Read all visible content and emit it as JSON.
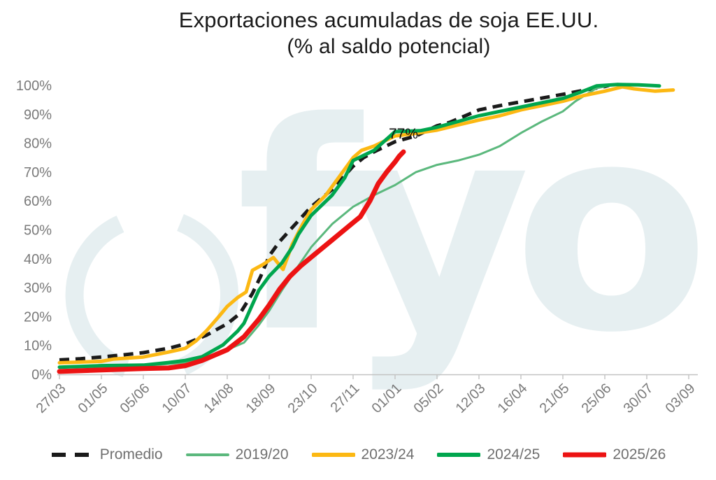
{
  "watermark": {
    "text": "fyo",
    "color": "#e6eff1"
  },
  "chart_data": {
    "type": "line",
    "title": "Exportaciones acumuladas de soja EE.UU.",
    "subtitle": "(% al saldo potencial)",
    "xlabel": "",
    "ylabel": "",
    "ylim": [
      0,
      100
    ],
    "grid": false,
    "legend_position": "bottom",
    "x_unit": "tick_index (0 = 27/03, one tick = 5 weeks)",
    "x_tick_labels": [
      "27/03",
      "01/05",
      "05/06",
      "10/07",
      "14/08",
      "18/09",
      "23/10",
      "27/11",
      "01/01",
      "05/02",
      "12/03",
      "16/04",
      "21/05",
      "25/06",
      "30/07",
      "03/09"
    ],
    "y_ticks": [
      {
        "label": "0%",
        "value": 0
      },
      {
        "label": "10%",
        "value": 10
      },
      {
        "label": "20%",
        "value": 20
      },
      {
        "label": "30%",
        "value": 30
      },
      {
        "label": "40%",
        "value": 40
      },
      {
        "label": "50%",
        "value": 50
      },
      {
        "label": "60%",
        "value": 60
      },
      {
        "label": "70%",
        "value": 70
      },
      {
        "label": "80%",
        "value": 80
      },
      {
        "label": "90%",
        "value": 90
      },
      {
        "label": "100%",
        "value": 100
      }
    ],
    "annotation": {
      "text": "77%",
      "x": 8.2,
      "y": 77
    },
    "axis_color": "#c2c2c2",
    "tick_text_color": "#7a7a7a",
    "series": [
      {
        "name": "Promedio",
        "color": "#1a1a1a",
        "style": "dashed",
        "width": 5,
        "points": [
          [
            0,
            5
          ],
          [
            0.5,
            5.4
          ],
          [
            1,
            6
          ],
          [
            1.5,
            6.7
          ],
          [
            2,
            7.5
          ],
          [
            2.6,
            9
          ],
          [
            3,
            10.5
          ],
          [
            3.5,
            13.5
          ],
          [
            4,
            17.5
          ],
          [
            4.3,
            21
          ],
          [
            4.6,
            28
          ],
          [
            4.8,
            34
          ],
          [
            5,
            41
          ],
          [
            5.25,
            46
          ],
          [
            5.5,
            50
          ],
          [
            5.75,
            54
          ],
          [
            6,
            58
          ],
          [
            6.5,
            64
          ],
          [
            7,
            72
          ],
          [
            7.25,
            75
          ],
          [
            7.5,
            77
          ],
          [
            8,
            80.5
          ],
          [
            8.5,
            82.5
          ],
          [
            9,
            86
          ],
          [
            9.3,
            87.2
          ],
          [
            10,
            91.5
          ],
          [
            10.5,
            93
          ],
          [
            11,
            94.3
          ],
          [
            11.5,
            95.6
          ],
          [
            12,
            96.9
          ],
          [
            12.5,
            98.3
          ],
          [
            13,
            99.6
          ],
          [
            13.1,
            100
          ]
        ]
      },
      {
        "name": "2019/20",
        "color": "#5bb87d",
        "style": "solid",
        "width": 3,
        "points": [
          [
            0,
            2.5
          ],
          [
            1,
            2.5
          ],
          [
            2,
            3
          ],
          [
            3,
            4
          ],
          [
            3.5,
            6
          ],
          [
            4,
            8.5
          ],
          [
            4.4,
            11
          ],
          [
            4.75,
            17
          ],
          [
            5,
            22
          ],
          [
            5.3,
            29
          ],
          [
            5.6,
            35.5
          ],
          [
            6,
            44
          ],
          [
            6.5,
            52
          ],
          [
            7,
            58
          ],
          [
            7.5,
            62
          ],
          [
            8,
            65.5
          ],
          [
            8.5,
            70
          ],
          [
            9,
            72.5
          ],
          [
            9.5,
            74
          ],
          [
            10,
            76
          ],
          [
            10.5,
            79
          ],
          [
            11,
            83.5
          ],
          [
            11.5,
            87.5
          ],
          [
            12,
            91
          ],
          [
            12.3,
            94.5
          ],
          [
            12.8,
            99
          ],
          [
            13.3,
            100.5
          ],
          [
            13.8,
            100.2
          ],
          [
            14.2,
            100
          ]
        ]
      },
      {
        "name": "2023/24",
        "color": "#fcb813",
        "style": "solid",
        "width": 5,
        "points": [
          [
            0,
            4
          ],
          [
            1,
            4.5
          ],
          [
            1.3,
            5.3
          ],
          [
            2,
            6
          ],
          [
            2.6,
            7.7
          ],
          [
            3,
            9
          ],
          [
            3.25,
            11.5
          ],
          [
            3.5,
            15
          ],
          [
            3.8,
            20
          ],
          [
            4,
            23.5
          ],
          [
            4.25,
            26.6
          ],
          [
            4.45,
            28.5
          ],
          [
            4.6,
            36
          ],
          [
            4.85,
            38
          ],
          [
            5.1,
            40.4
          ],
          [
            5.33,
            36.3
          ],
          [
            5.55,
            45
          ],
          [
            5.8,
            52
          ],
          [
            6,
            57
          ],
          [
            6.35,
            62
          ],
          [
            6.65,
            68
          ],
          [
            7,
            75
          ],
          [
            7.2,
            77.5
          ],
          [
            7.5,
            79
          ],
          [
            8,
            82.5
          ],
          [
            8.4,
            83.2
          ],
          [
            9,
            84.5
          ],
          [
            9.5,
            86.3
          ],
          [
            10,
            88
          ],
          [
            10.5,
            89.5
          ],
          [
            11,
            91.5
          ],
          [
            11.5,
            93
          ],
          [
            12,
            94.5
          ],
          [
            12.5,
            96.5
          ],
          [
            13,
            98
          ],
          [
            13.42,
            99.5
          ],
          [
            13.7,
            98.8
          ],
          [
            14.2,
            98
          ],
          [
            14.63,
            98.4
          ]
        ]
      },
      {
        "name": "2024/25",
        "color": "#00a64e",
        "style": "solid",
        "width": 5,
        "points": [
          [
            0,
            2.5
          ],
          [
            1,
            3
          ],
          [
            2,
            3.2
          ],
          [
            2.6,
            4.1
          ],
          [
            3,
            4.8
          ],
          [
            3.4,
            6.1
          ],
          [
            3.9,
            10.2
          ],
          [
            4.25,
            15
          ],
          [
            4.4,
            17.7
          ],
          [
            4.75,
            29
          ],
          [
            5,
            34
          ],
          [
            5.3,
            38.5
          ],
          [
            5.55,
            44
          ],
          [
            5.7,
            48.5
          ],
          [
            6,
            55
          ],
          [
            6.5,
            62
          ],
          [
            6.8,
            68
          ],
          [
            7,
            74
          ],
          [
            7.5,
            77.5
          ],
          [
            8,
            84
          ],
          [
            8.6,
            84.3
          ],
          [
            9,
            85.5
          ],
          [
            9.5,
            87.5
          ],
          [
            10,
            89.5
          ],
          [
            10.5,
            91
          ],
          [
            11,
            92.5
          ],
          [
            11.5,
            94
          ],
          [
            12,
            95.5
          ],
          [
            12.4,
            97.5
          ],
          [
            12.8,
            99.8
          ],
          [
            13.3,
            100.3
          ],
          [
            13.8,
            100.2
          ],
          [
            14.3,
            99.8
          ]
        ]
      },
      {
        "name": "2025/26",
        "color": "#ec1313",
        "style": "solid",
        "width": 7,
        "points": [
          [
            0,
            1
          ],
          [
            1,
            1.5
          ],
          [
            2,
            2
          ],
          [
            2.6,
            2.2
          ],
          [
            3,
            3
          ],
          [
            3.4,
            4.8
          ],
          [
            4,
            8.5
          ],
          [
            4.4,
            13
          ],
          [
            4.75,
            19
          ],
          [
            5,
            24
          ],
          [
            5.25,
            29.5
          ],
          [
            5.5,
            34
          ],
          [
            5.75,
            37.5
          ],
          [
            6,
            40.5
          ],
          [
            6.5,
            46.5
          ],
          [
            7,
            52.5
          ],
          [
            7.17,
            54.5
          ],
          [
            7.4,
            60
          ],
          [
            7.6,
            66
          ],
          [
            7.8,
            70
          ],
          [
            8,
            73.5
          ],
          [
            8.1,
            75.5
          ],
          [
            8.2,
            77
          ]
        ]
      }
    ]
  }
}
